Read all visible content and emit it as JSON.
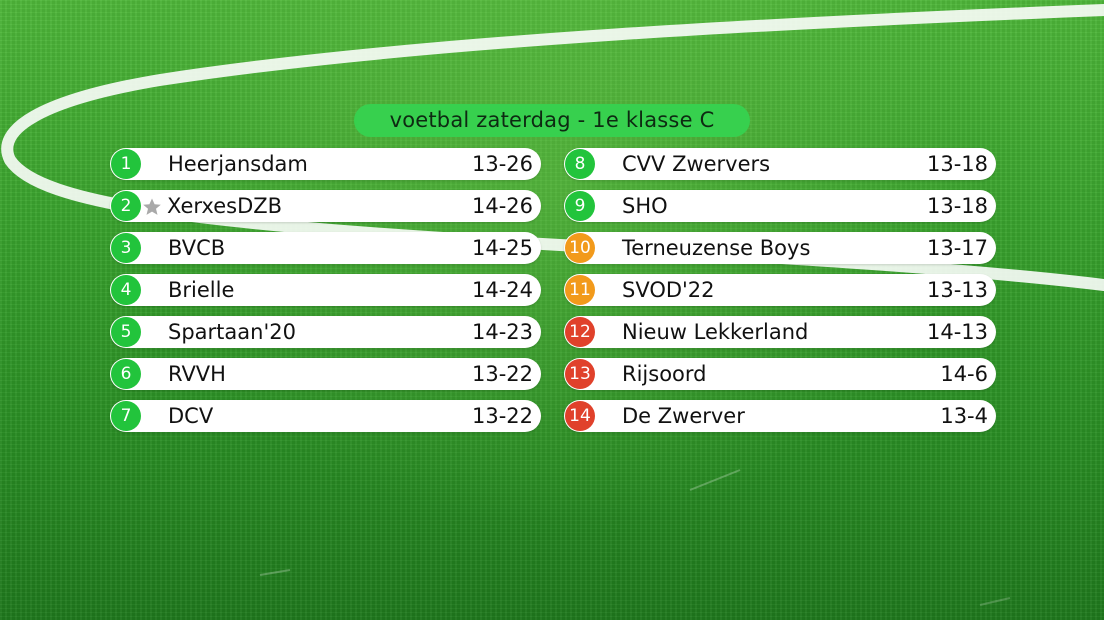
{
  "title": "voetbal zaterdag - 1e klasse C",
  "colors": {
    "rank_green": "#22c43c",
    "rank_orange": "#f29a1b",
    "rank_red": "#e0412b",
    "header_pill": "#37d04e",
    "row_background": "#ffffff"
  },
  "marker_icon": "star-icon",
  "left_column": [
    {
      "rank": "1",
      "team": "Heerjansdam",
      "score": "13-26",
      "status": "green"
    },
    {
      "rank": "2",
      "team": "XerxesDZB",
      "score": "14-26",
      "status": "green",
      "marker": "star"
    },
    {
      "rank": "3",
      "team": "BVCB",
      "score": "14-25",
      "status": "green"
    },
    {
      "rank": "4",
      "team": "Brielle",
      "score": "14-24",
      "status": "green"
    },
    {
      "rank": "5",
      "team": "Spartaan'20",
      "score": "14-23",
      "status": "green"
    },
    {
      "rank": "6",
      "team": "RVVH",
      "score": "13-22",
      "status": "green"
    },
    {
      "rank": "7",
      "team": "DCV",
      "score": "13-22",
      "status": "green"
    }
  ],
  "right_column": [
    {
      "rank": "8",
      "team": "CVV Zwervers",
      "score": "13-18",
      "status": "green"
    },
    {
      "rank": "9",
      "team": "SHO",
      "score": "13-18",
      "status": "green"
    },
    {
      "rank": "10",
      "team": "Terneuzense Boys",
      "score": "13-17",
      "status": "orange"
    },
    {
      "rank": "11",
      "team": "SVOD'22",
      "score": "13-13",
      "status": "orange"
    },
    {
      "rank": "12",
      "team": "Nieuw Lekkerland",
      "score": "14-13",
      "status": "red"
    },
    {
      "rank": "13",
      "team": "Rijsoord",
      "score": "14-6",
      "status": "red"
    },
    {
      "rank": "14",
      "team": "De Zwerver",
      "score": "13-4",
      "status": "red"
    }
  ]
}
